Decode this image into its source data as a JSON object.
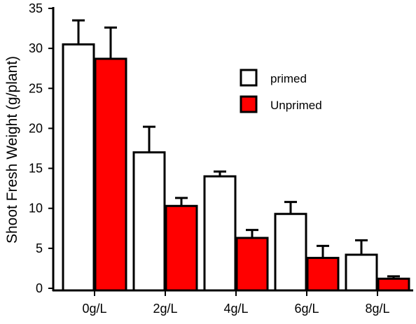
{
  "chart_data": {
    "type": "bar",
    "title": "",
    "xlabel": "",
    "ylabel": "Shoot Fresh Weight (g/plant)",
    "ylim": [
      0,
      35
    ],
    "yticks": [
      "0",
      "5",
      "10",
      "15",
      "20",
      "25",
      "30",
      "35"
    ],
    "categories": [
      "0g/L",
      "2g/L",
      "4g/L",
      "6g/L",
      "8g/L"
    ],
    "series": [
      {
        "name": "primed",
        "color": "#ffffff",
        "values": [
          30.5,
          17.0,
          14.0,
          9.3,
          4.2
        ],
        "errors": [
          3.0,
          3.2,
          0.6,
          1.5,
          1.8
        ]
      },
      {
        "name": "Unprimed",
        "color": "#ff0000",
        "values": [
          28.7,
          10.3,
          6.3,
          3.8,
          1.2
        ],
        "errors": [
          3.9,
          1.0,
          1.0,
          1.5,
          0.3
        ]
      }
    ],
    "legend": {
      "position": "right-middle"
    },
    "grid": false
  }
}
